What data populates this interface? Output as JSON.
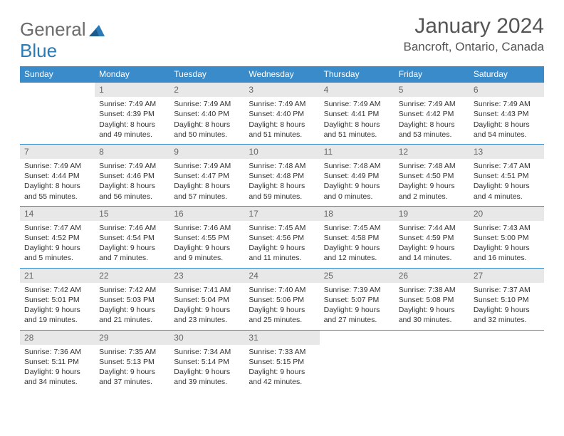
{
  "logo": {
    "word1": "General",
    "word2": "Blue"
  },
  "title": "January 2024",
  "location": "Bancroft, Ontario, Canada",
  "colors": {
    "header_bg": "#3a8bc9",
    "header_text": "#ffffff",
    "daynum_bg": "#e8e8e8",
    "daynum_text": "#666666",
    "border": "#3a8bc9",
    "body_text": "#333333",
    "title_text": "#555555",
    "logo_gray": "#6b6b6b",
    "logo_blue": "#2a7ab8"
  },
  "weekdays": [
    "Sunday",
    "Monday",
    "Tuesday",
    "Wednesday",
    "Thursday",
    "Friday",
    "Saturday"
  ],
  "weeks": [
    [
      null,
      {
        "n": "1",
        "sr": "Sunrise: 7:49 AM",
        "ss": "Sunset: 4:39 PM",
        "d1": "Daylight: 8 hours",
        "d2": "and 49 minutes."
      },
      {
        "n": "2",
        "sr": "Sunrise: 7:49 AM",
        "ss": "Sunset: 4:40 PM",
        "d1": "Daylight: 8 hours",
        "d2": "and 50 minutes."
      },
      {
        "n": "3",
        "sr": "Sunrise: 7:49 AM",
        "ss": "Sunset: 4:40 PM",
        "d1": "Daylight: 8 hours",
        "d2": "and 51 minutes."
      },
      {
        "n": "4",
        "sr": "Sunrise: 7:49 AM",
        "ss": "Sunset: 4:41 PM",
        "d1": "Daylight: 8 hours",
        "d2": "and 51 minutes."
      },
      {
        "n": "5",
        "sr": "Sunrise: 7:49 AM",
        "ss": "Sunset: 4:42 PM",
        "d1": "Daylight: 8 hours",
        "d2": "and 53 minutes."
      },
      {
        "n": "6",
        "sr": "Sunrise: 7:49 AM",
        "ss": "Sunset: 4:43 PM",
        "d1": "Daylight: 8 hours",
        "d2": "and 54 minutes."
      }
    ],
    [
      {
        "n": "7",
        "sr": "Sunrise: 7:49 AM",
        "ss": "Sunset: 4:44 PM",
        "d1": "Daylight: 8 hours",
        "d2": "and 55 minutes."
      },
      {
        "n": "8",
        "sr": "Sunrise: 7:49 AM",
        "ss": "Sunset: 4:46 PM",
        "d1": "Daylight: 8 hours",
        "d2": "and 56 minutes."
      },
      {
        "n": "9",
        "sr": "Sunrise: 7:49 AM",
        "ss": "Sunset: 4:47 PM",
        "d1": "Daylight: 8 hours",
        "d2": "and 57 minutes."
      },
      {
        "n": "10",
        "sr": "Sunrise: 7:48 AM",
        "ss": "Sunset: 4:48 PM",
        "d1": "Daylight: 8 hours",
        "d2": "and 59 minutes."
      },
      {
        "n": "11",
        "sr": "Sunrise: 7:48 AM",
        "ss": "Sunset: 4:49 PM",
        "d1": "Daylight: 9 hours",
        "d2": "and 0 minutes."
      },
      {
        "n": "12",
        "sr": "Sunrise: 7:48 AM",
        "ss": "Sunset: 4:50 PM",
        "d1": "Daylight: 9 hours",
        "d2": "and 2 minutes."
      },
      {
        "n": "13",
        "sr": "Sunrise: 7:47 AM",
        "ss": "Sunset: 4:51 PM",
        "d1": "Daylight: 9 hours",
        "d2": "and 4 minutes."
      }
    ],
    [
      {
        "n": "14",
        "sr": "Sunrise: 7:47 AM",
        "ss": "Sunset: 4:52 PM",
        "d1": "Daylight: 9 hours",
        "d2": "and 5 minutes."
      },
      {
        "n": "15",
        "sr": "Sunrise: 7:46 AM",
        "ss": "Sunset: 4:54 PM",
        "d1": "Daylight: 9 hours",
        "d2": "and 7 minutes."
      },
      {
        "n": "16",
        "sr": "Sunrise: 7:46 AM",
        "ss": "Sunset: 4:55 PM",
        "d1": "Daylight: 9 hours",
        "d2": "and 9 minutes."
      },
      {
        "n": "17",
        "sr": "Sunrise: 7:45 AM",
        "ss": "Sunset: 4:56 PM",
        "d1": "Daylight: 9 hours",
        "d2": "and 11 minutes."
      },
      {
        "n": "18",
        "sr": "Sunrise: 7:45 AM",
        "ss": "Sunset: 4:58 PM",
        "d1": "Daylight: 9 hours",
        "d2": "and 12 minutes."
      },
      {
        "n": "19",
        "sr": "Sunrise: 7:44 AM",
        "ss": "Sunset: 4:59 PM",
        "d1": "Daylight: 9 hours",
        "d2": "and 14 minutes."
      },
      {
        "n": "20",
        "sr": "Sunrise: 7:43 AM",
        "ss": "Sunset: 5:00 PM",
        "d1": "Daylight: 9 hours",
        "d2": "and 16 minutes."
      }
    ],
    [
      {
        "n": "21",
        "sr": "Sunrise: 7:42 AM",
        "ss": "Sunset: 5:01 PM",
        "d1": "Daylight: 9 hours",
        "d2": "and 19 minutes."
      },
      {
        "n": "22",
        "sr": "Sunrise: 7:42 AM",
        "ss": "Sunset: 5:03 PM",
        "d1": "Daylight: 9 hours",
        "d2": "and 21 minutes."
      },
      {
        "n": "23",
        "sr": "Sunrise: 7:41 AM",
        "ss": "Sunset: 5:04 PM",
        "d1": "Daylight: 9 hours",
        "d2": "and 23 minutes."
      },
      {
        "n": "24",
        "sr": "Sunrise: 7:40 AM",
        "ss": "Sunset: 5:06 PM",
        "d1": "Daylight: 9 hours",
        "d2": "and 25 minutes."
      },
      {
        "n": "25",
        "sr": "Sunrise: 7:39 AM",
        "ss": "Sunset: 5:07 PM",
        "d1": "Daylight: 9 hours",
        "d2": "and 27 minutes."
      },
      {
        "n": "26",
        "sr": "Sunrise: 7:38 AM",
        "ss": "Sunset: 5:08 PM",
        "d1": "Daylight: 9 hours",
        "d2": "and 30 minutes."
      },
      {
        "n": "27",
        "sr": "Sunrise: 7:37 AM",
        "ss": "Sunset: 5:10 PM",
        "d1": "Daylight: 9 hours",
        "d2": "and 32 minutes."
      }
    ],
    [
      {
        "n": "28",
        "sr": "Sunrise: 7:36 AM",
        "ss": "Sunset: 5:11 PM",
        "d1": "Daylight: 9 hours",
        "d2": "and 34 minutes."
      },
      {
        "n": "29",
        "sr": "Sunrise: 7:35 AM",
        "ss": "Sunset: 5:13 PM",
        "d1": "Daylight: 9 hours",
        "d2": "and 37 minutes."
      },
      {
        "n": "30",
        "sr": "Sunrise: 7:34 AM",
        "ss": "Sunset: 5:14 PM",
        "d1": "Daylight: 9 hours",
        "d2": "and 39 minutes."
      },
      {
        "n": "31",
        "sr": "Sunrise: 7:33 AM",
        "ss": "Sunset: 5:15 PM",
        "d1": "Daylight: 9 hours",
        "d2": "and 42 minutes."
      },
      null,
      null,
      null
    ]
  ]
}
